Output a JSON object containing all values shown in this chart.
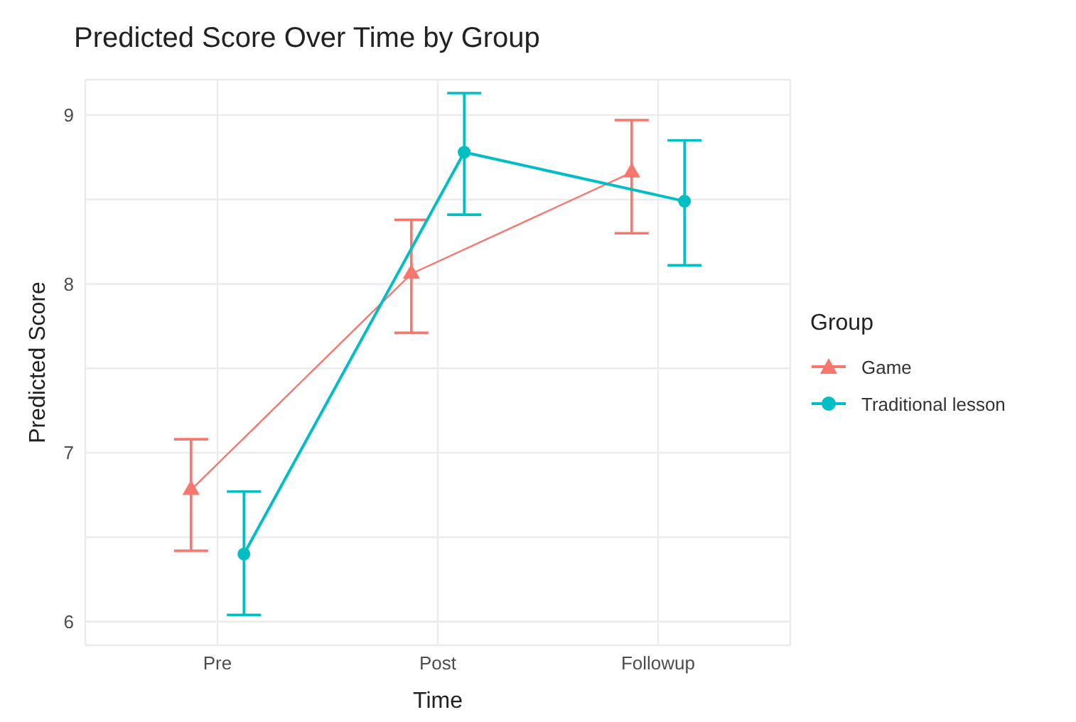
{
  "chart_data": {
    "type": "line",
    "title": "Predicted Score Over Time by Group",
    "xlabel": "Time",
    "ylabel": "Predicted Score",
    "legend_title": "Group",
    "categories": [
      "Pre",
      "Post",
      "Followup"
    ],
    "series": [
      {
        "name": "Game",
        "color": "#f8766d",
        "marker": "triangle",
        "values": [
          6.78,
          8.06,
          8.66
        ],
        "errors": [
          [
            6.42,
            7.08
          ],
          [
            7.71,
            8.38
          ],
          [
            8.3,
            8.97
          ]
        ]
      },
      {
        "name": "Traditional lesson",
        "color": "#00bfc4",
        "marker": "circle",
        "values": [
          6.4,
          8.78,
          8.49
        ],
        "errors": [
          [
            6.04,
            6.77
          ],
          [
            8.41,
            9.13
          ],
          [
            8.11,
            8.85
          ]
        ]
      }
    ],
    "ylim": [
      5.86,
      9.21
    ],
    "yticks": [
      6,
      {
        "value": 6.5,
        "label": null
      },
      7,
      {
        "value": 7.5,
        "label": null
      },
      8,
      {
        "value": 8.5,
        "label": null
      },
      9
    ],
    "grid": true,
    "legend": "right"
  }
}
